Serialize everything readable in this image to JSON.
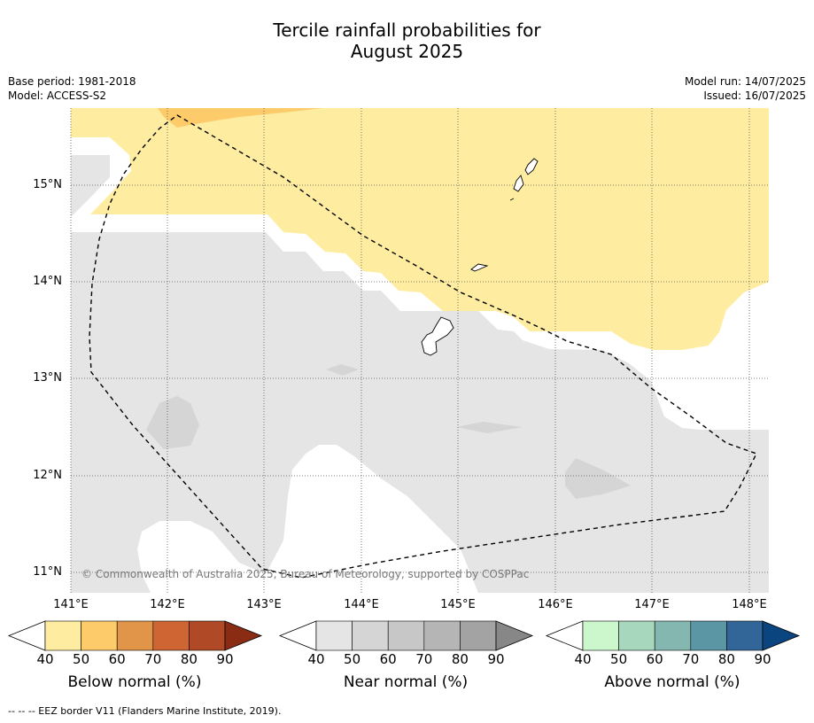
{
  "title": {
    "line1": "Tercile rainfall probabilities for",
    "line2": "August 2025"
  },
  "meta": {
    "base_period": "Base period: 1981-2018",
    "model": "Model: ACCESS-S2",
    "model_run": "Model run: 14/07/2025",
    "issued": "Issued: 16/07/2025"
  },
  "map": {
    "lat_labels": [
      "15°N",
      "14°N",
      "13°N",
      "12°N",
      "11°N"
    ],
    "lon_labels": [
      "141°E",
      "142°E",
      "143°E",
      "144°E",
      "145°E",
      "146°E",
      "147°E",
      "148°E"
    ],
    "copyright": "© Commonwealth of Australia 2025, Bureau of Meteorology, supported by COSPPac",
    "colors": {
      "below_40_50": "#feeda0",
      "below_50_60": "#fdcb6a",
      "near_40_50": "#e5e5e5",
      "near_50_60": "#d5d5d5",
      "border": "#000000"
    }
  },
  "legend": {
    "tick_labels": [
      "40",
      "50",
      "60",
      "70",
      "80",
      "90"
    ],
    "below": {
      "title": "Below normal (%)",
      "colors": [
        "#ffffff",
        "#feeda0",
        "#fdcb6a",
        "#e09548",
        "#cf6533",
        "#b04a26",
        "#8a2c14"
      ]
    },
    "near": {
      "title": "Near normal (%)",
      "colors": [
        "#ffffff",
        "#e5e5e5",
        "#d5d5d5",
        "#c7c7c7",
        "#b5b5b5",
        "#a3a3a3",
        "#878787"
      ]
    },
    "above": {
      "title": "Above normal (%)",
      "colors": [
        "#ffffff",
        "#ccf7cc",
        "#a7d7bc",
        "#85b7b1",
        "#5b96a5",
        "#326699",
        "#0a4580"
      ]
    }
  },
  "footer": "--  --  -- EEZ border V11 (Flanders Marine Institute, 2019)."
}
